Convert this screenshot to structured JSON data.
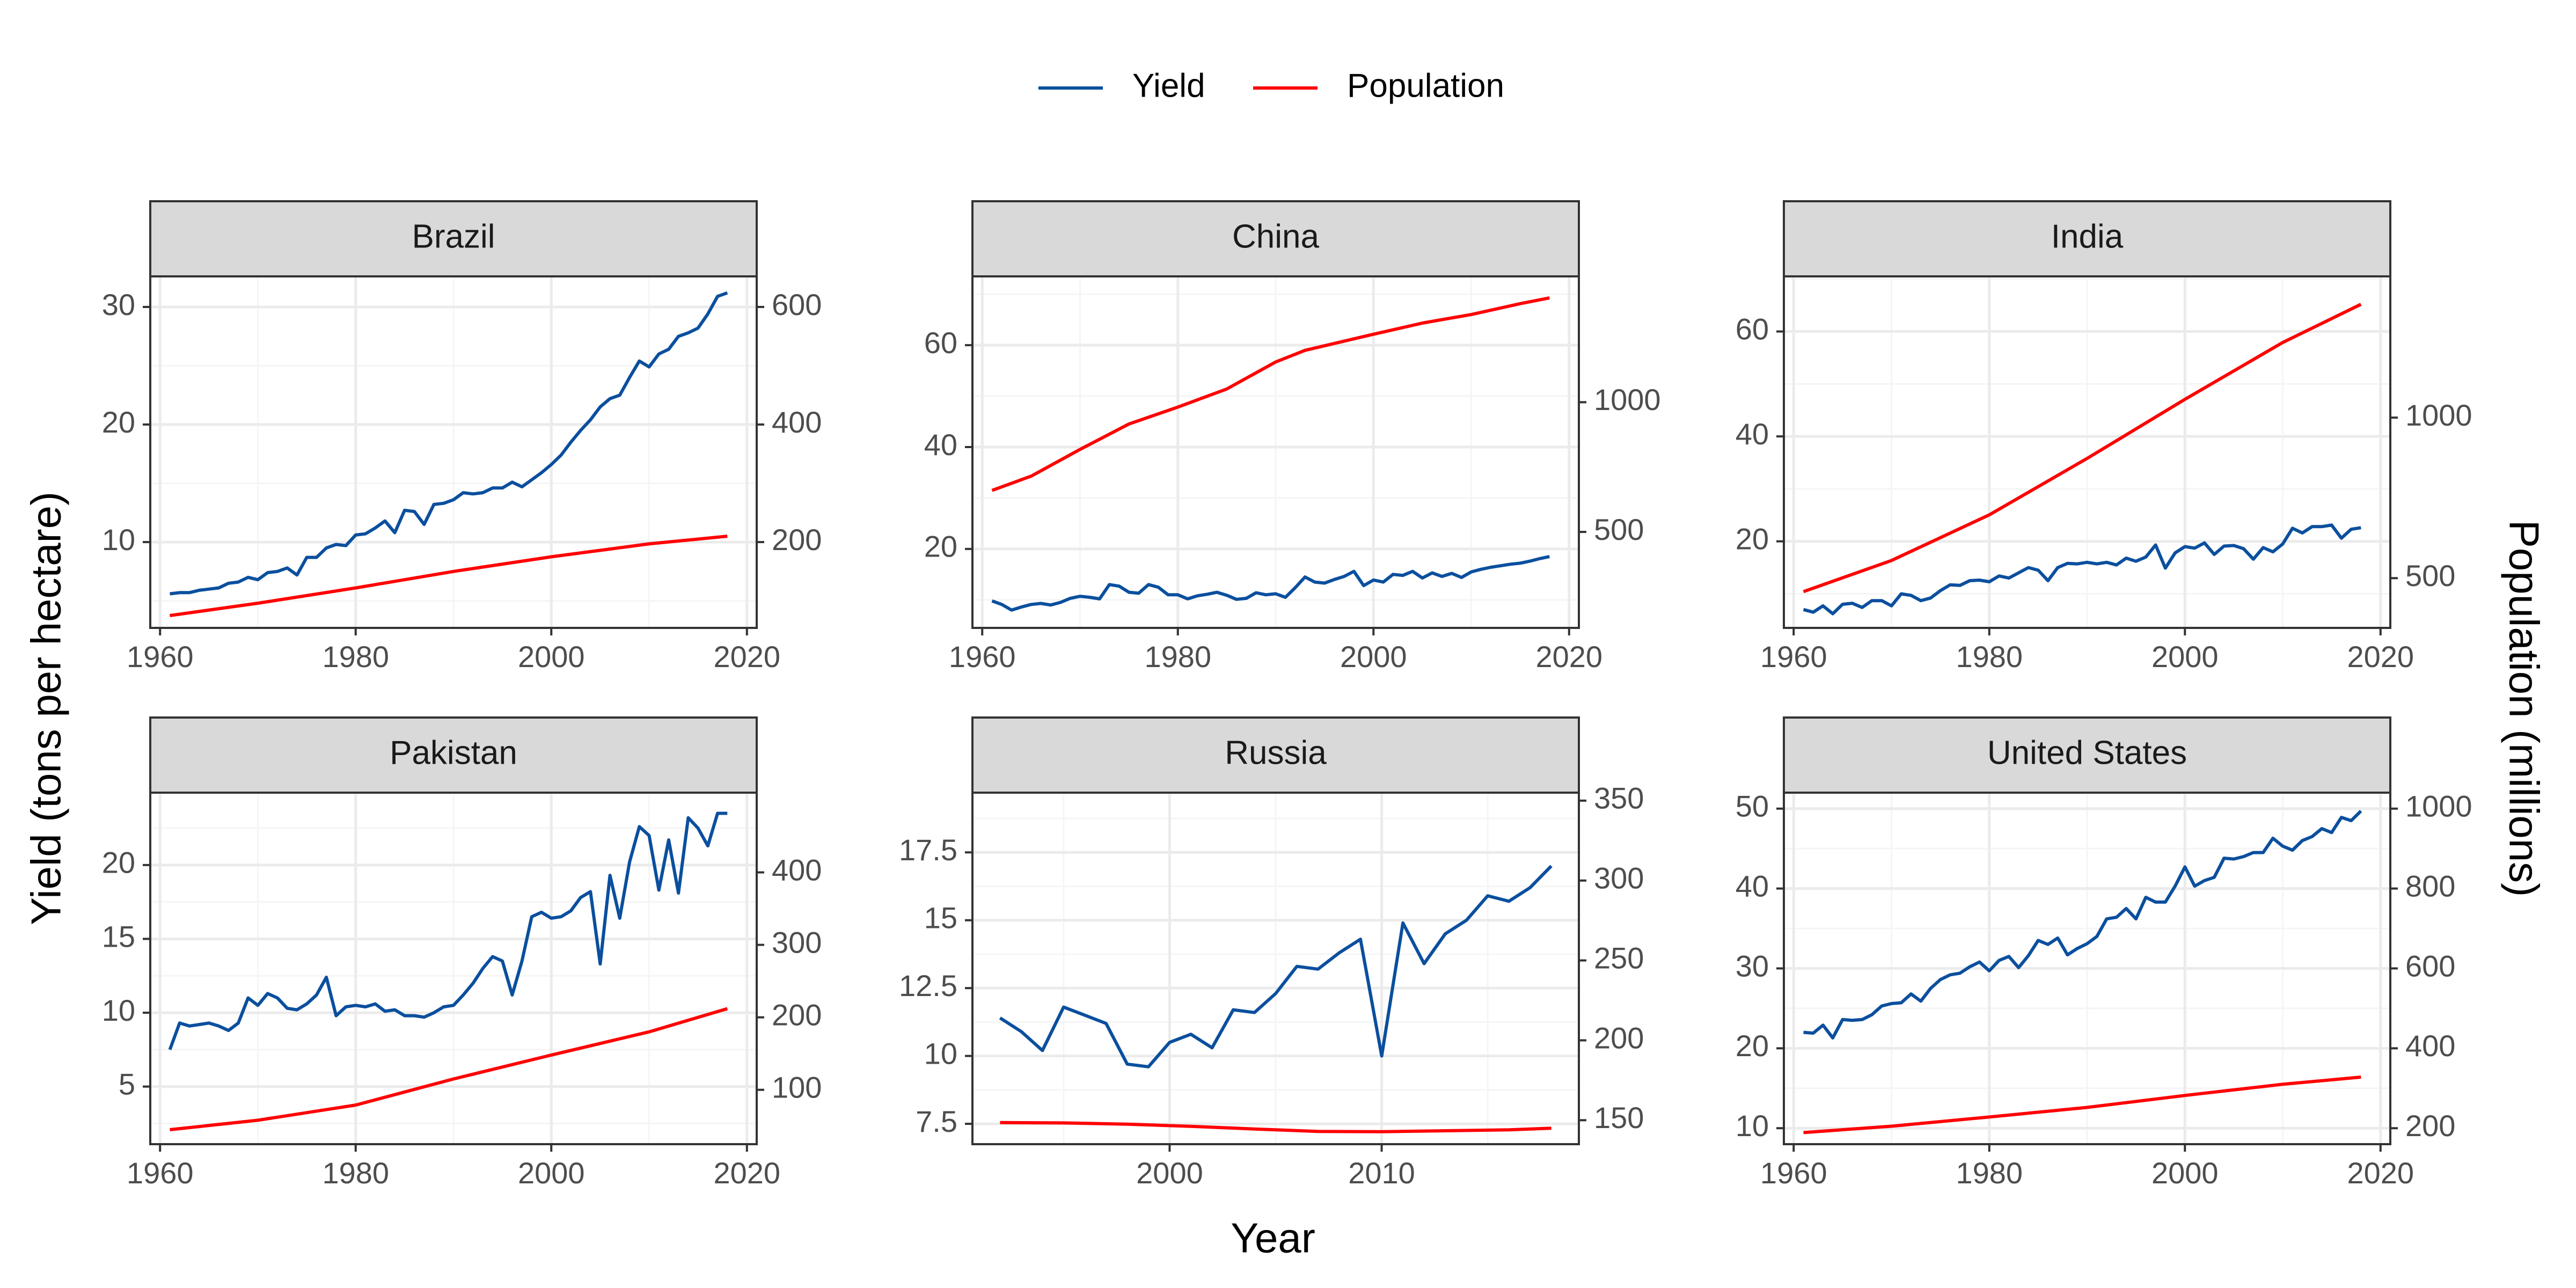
{
  "figure": {
    "x_axis_title": "Year",
    "y_left_title": "Yield (tons per hectare)",
    "y_right_title": "Population (millions)",
    "legend": [
      {
        "label": "Yield",
        "color": "#0b4f9e"
      },
      {
        "label": "Population",
        "color": "#ff0000"
      }
    ]
  },
  "colors": {
    "yield": "#0b4f9e",
    "population": "#ff0000",
    "strip": "#d9d9d9",
    "grid_major": "#ebebeb",
    "grid_minor": "#f5f5f5"
  },
  "chart_data": [
    {
      "type": "line",
      "title": "Brazil",
      "legend_position": "top",
      "grid": true,
      "xlim": [
        1959,
        2021
      ],
      "x_ticks": [
        1960,
        1980,
        2000,
        2020
      ],
      "ylim_left": [
        2.7,
        32.6
      ],
      "y_ticks_left": [
        10,
        20,
        30
      ],
      "ylim_right": [
        54,
        652
      ],
      "y_ticks_right": [
        200,
        400,
        600
      ],
      "series": [
        {
          "name": "Yield",
          "axis": "left",
          "x": [
            1961,
            1962,
            1963,
            1964,
            1965,
            1966,
            1967,
            1968,
            1969,
            1970,
            1971,
            1972,
            1973,
            1974,
            1975,
            1976,
            1977,
            1978,
            1979,
            1980,
            1981,
            1982,
            1983,
            1984,
            1985,
            1986,
            1987,
            1988,
            1989,
            1990,
            1991,
            1992,
            1993,
            1994,
            1995,
            1996,
            1997,
            1998,
            1999,
            2000,
            2001,
            2002,
            2003,
            2004,
            2005,
            2006,
            2007,
            2008,
            2009,
            2010,
            2011,
            2012,
            2013,
            2014,
            2015,
            2016,
            2017,
            2018
          ],
          "y": [
            5.6,
            5.7,
            5.7,
            5.9,
            6.0,
            6.1,
            6.5,
            6.6,
            7.0,
            6.8,
            7.4,
            7.5,
            7.8,
            7.2,
            8.7,
            8.7,
            9.5,
            9.8,
            9.7,
            10.6,
            10.7,
            11.2,
            11.8,
            10.8,
            12.7,
            12.6,
            11.5,
            13.2,
            13.3,
            13.6,
            14.2,
            14.1,
            14.2,
            14.6,
            14.6,
            15.1,
            14.7,
            15.3,
            15.9,
            16.6,
            17.4,
            18.5,
            19.5,
            20.4,
            21.5,
            22.2,
            22.5,
            24.0,
            25.4,
            24.9,
            26.0,
            26.4,
            27.5,
            27.8,
            28.2,
            29.4,
            30.9,
            31.2
          ]
        },
        {
          "name": "Population",
          "axis": "right",
          "x": [
            1961,
            1970,
            1980,
            1990,
            2000,
            2010,
            2018
          ],
          "y": [
            75,
            96,
            122,
            150,
            175,
            197,
            210
          ]
        }
      ]
    },
    {
      "type": "line",
      "title": "China",
      "legend_position": "top",
      "grid": true,
      "xlim": [
        1959,
        2021
      ],
      "x_ticks": [
        1960,
        1980,
        2000,
        2020
      ],
      "ylim_left": [
        4.5,
        73.5
      ],
      "y_ticks_left": [
        20,
        40,
        60
      ],
      "ylim_right": [
        130,
        1485
      ],
      "y_ticks_right": [
        500,
        1000
      ],
      "series": [
        {
          "name": "Yield",
          "axis": "left",
          "x": [
            1961,
            1962,
            1963,
            1964,
            1965,
            1966,
            1967,
            1968,
            1969,
            1970,
            1971,
            1972,
            1973,
            1974,
            1975,
            1976,
            1977,
            1978,
            1979,
            1980,
            1981,
            1982,
            1983,
            1984,
            1985,
            1986,
            1987,
            1988,
            1989,
            1990,
            1991,
            1992,
            1993,
            1994,
            1995,
            1996,
            1997,
            1998,
            1999,
            2000,
            2001,
            2002,
            2003,
            2004,
            2005,
            2006,
            2007,
            2008,
            2009,
            2010,
            2011,
            2012,
            2013,
            2014,
            2015,
            2016,
            2017,
            2018
          ],
          "y": [
            9.8,
            9.1,
            8.0,
            8.6,
            9.1,
            9.3,
            9.0,
            9.5,
            10.3,
            10.7,
            10.5,
            10.2,
            13.0,
            12.7,
            11.5,
            11.3,
            13.0,
            12.5,
            11.0,
            11.0,
            10.2,
            10.8,
            11.1,
            11.5,
            10.9,
            10.1,
            10.3,
            11.4,
            11.0,
            11.2,
            10.5,
            12.4,
            14.5,
            13.5,
            13.3,
            14.0,
            14.6,
            15.6,
            12.8,
            13.9,
            13.5,
            15.0,
            14.8,
            15.6,
            14.3,
            15.3,
            14.6,
            15.2,
            14.4,
            15.5,
            16.0,
            16.4,
            16.7,
            17.0,
            17.2,
            17.6,
            18.1,
            18.5
          ]
        },
        {
          "name": "Population",
          "axis": "right",
          "x": [
            1961,
            1965,
            1970,
            1975,
            1980,
            1985,
            1990,
            1993,
            2000,
            2005,
            2010,
            2015,
            2018
          ],
          "y": [
            660,
            715,
            818,
            916,
            981,
            1051,
            1155,
            1200,
            1262,
            1305,
            1338,
            1380,
            1402
          ]
        }
      ]
    },
    {
      "type": "line",
      "title": "India",
      "legend_position": "top",
      "grid": true,
      "xlim": [
        1959,
        2021
      ],
      "x_ticks": [
        1960,
        1980,
        2000,
        2020
      ],
      "ylim_left": [
        3.5,
        70.5
      ],
      "y_ticks_left": [
        20,
        40,
        60
      ],
      "ylim_right": [
        345,
        1440
      ],
      "y_ticks_right": [
        500,
        1000
      ],
      "series": [
        {
          "name": "Yield",
          "axis": "left",
          "x": [
            1961,
            1962,
            1963,
            1964,
            1965,
            1966,
            1967,
            1968,
            1969,
            1970,
            1971,
            1972,
            1973,
            1974,
            1975,
            1976,
            1977,
            1978,
            1979,
            1980,
            1981,
            1982,
            1983,
            1984,
            1985,
            1986,
            1987,
            1988,
            1989,
            1990,
            1991,
            1992,
            1993,
            1994,
            1995,
            1996,
            1997,
            1998,
            1999,
            2000,
            2001,
            2002,
            2003,
            2004,
            2005,
            2006,
            2007,
            2008,
            2009,
            2010,
            2011,
            2012,
            2013,
            2014,
            2015,
            2016,
            2017,
            2018
          ],
          "y": [
            7.0,
            6.5,
            7.7,
            6.2,
            8.0,
            8.2,
            7.4,
            8.7,
            8.7,
            7.7,
            10.0,
            9.7,
            8.7,
            9.2,
            10.6,
            11.7,
            11.6,
            12.5,
            12.6,
            12.3,
            13.4,
            13.0,
            14.0,
            15.0,
            14.5,
            12.5,
            15.0,
            15.8,
            15.7,
            16.0,
            15.7,
            16.0,
            15.5,
            16.8,
            16.2,
            17.0,
            19.3,
            14.9,
            17.8,
            19.0,
            18.7,
            19.7,
            17.5,
            19.1,
            19.2,
            18.6,
            16.6,
            18.8,
            18.0,
            19.5,
            22.5,
            21.6,
            22.8,
            22.8,
            23.1,
            20.6,
            22.3,
            22.6
          ]
        },
        {
          "name": "Population",
          "axis": "right",
          "x": [
            1961,
            1970,
            1980,
            1990,
            2000,
            2010,
            2018
          ],
          "y": [
            458,
            555,
            697,
            873,
            1057,
            1234,
            1353
          ]
        }
      ]
    },
    {
      "type": "line",
      "title": "Pakistan",
      "legend_position": "top",
      "grid": true,
      "xlim": [
        1959,
        2021
      ],
      "x_ticks": [
        1960,
        1980,
        2000,
        2020
      ],
      "ylim_left": [
        1.1,
        24.9
      ],
      "y_ticks_left": [
        5,
        10,
        15,
        20
      ],
      "ylim_right": [
        25,
        510
      ],
      "y_ticks_right": [
        100,
        200,
        300,
        400
      ],
      "series": [
        {
          "name": "Yield",
          "axis": "left",
          "x": [
            1961,
            1962,
            1963,
            1964,
            1965,
            1966,
            1967,
            1968,
            1969,
            1970,
            1971,
            1972,
            1973,
            1974,
            1975,
            1976,
            1977,
            1978,
            1979,
            1980,
            1981,
            1982,
            1983,
            1984,
            1985,
            1986,
            1987,
            1988,
            1989,
            1990,
            1991,
            1992,
            1993,
            1994,
            1995,
            1996,
            1997,
            1998,
            1999,
            2000,
            2001,
            2002,
            2003,
            2004,
            2005,
            2006,
            2007,
            2008,
            2009,
            2010,
            2011,
            2012,
            2013,
            2014,
            2015,
            2016,
            2017,
            2018
          ],
          "y": [
            7.5,
            9.3,
            9.1,
            9.2,
            9.3,
            9.1,
            8.8,
            9.3,
            11.0,
            10.5,
            11.3,
            11.0,
            10.3,
            10.2,
            10.6,
            11.2,
            12.4,
            9.8,
            10.4,
            10.5,
            10.4,
            10.6,
            10.1,
            10.2,
            9.8,
            9.8,
            9.7,
            10.0,
            10.4,
            10.5,
            11.2,
            12.0,
            13.0,
            13.8,
            13.5,
            11.2,
            13.5,
            16.5,
            16.8,
            16.4,
            16.5,
            16.9,
            17.8,
            18.2,
            13.3,
            19.3,
            16.4,
            20.2,
            22.6,
            22.0,
            18.3,
            21.7,
            18.1,
            23.2,
            22.5,
            21.3,
            23.5,
            23.5
          ]
        },
        {
          "name": "Population",
          "axis": "right",
          "x": [
            1961,
            1970,
            1980,
            1990,
            2000,
            2010,
            2018
          ],
          "y": [
            45,
            58,
            79,
            115,
            148,
            180,
            212
          ]
        }
      ]
    },
    {
      "type": "line",
      "title": "Russia",
      "legend_position": "top",
      "grid": true,
      "xlim": [
        1990.7,
        2019.3
      ],
      "x_ticks": [
        2000,
        2010
      ],
      "ylim_left": [
        6.75,
        19.7
      ],
      "y_ticks_left": [
        7.5,
        10.0,
        12.5,
        15.0,
        17.5
      ],
      "ylim_right": [
        135,
        355
      ],
      "y_ticks_right": [
        150,
        200,
        250,
        300,
        350
      ],
      "series": [
        {
          "name": "Yield",
          "axis": "left",
          "x": [
            1992,
            1993,
            1994,
            1995,
            1996,
            1997,
            1998,
            1999,
            2000,
            2001,
            2002,
            2003,
            2004,
            2005,
            2006,
            2007,
            2008,
            2009,
            2010,
            2011,
            2012,
            2013,
            2014,
            2015,
            2016,
            2017,
            2018
          ],
          "y": [
            11.4,
            10.9,
            10.2,
            11.8,
            11.5,
            11.2,
            9.7,
            9.6,
            10.5,
            10.8,
            10.3,
            11.7,
            11.6,
            12.3,
            13.3,
            13.2,
            13.8,
            14.3,
            10.0,
            14.9,
            13.4,
            14.5,
            15.0,
            15.9,
            15.7,
            16.2,
            17.0
          ]
        },
        {
          "name": "Population",
          "axis": "right",
          "x": [
            1992,
            1995,
            1998,
            2001,
            2004,
            2007,
            2010,
            2013,
            2016,
            2018
          ],
          "y": [
            148.5,
            148.3,
            147.5,
            146.2,
            144.5,
            143.0,
            142.8,
            143.4,
            144.0,
            145.0
          ]
        }
      ]
    },
    {
      "type": "line",
      "title": "United States",
      "legend_position": "top",
      "grid": true,
      "xlim": [
        1959,
        2021
      ],
      "x_ticks": [
        1960,
        1980,
        2000,
        2020
      ],
      "ylim_left": [
        8.0,
        52.0
      ],
      "y_ticks_left": [
        10,
        20,
        30,
        40,
        50
      ],
      "ylim_right": [
        160,
        1040
      ],
      "y_ticks_right": [
        200,
        400,
        600,
        800,
        1000
      ],
      "series": [
        {
          "name": "Yield",
          "axis": "left",
          "x": [
            1961,
            1962,
            1963,
            1964,
            1965,
            1966,
            1967,
            1968,
            1969,
            1970,
            1971,
            1972,
            1973,
            1974,
            1975,
            1976,
            1977,
            1978,
            1979,
            1980,
            1981,
            1982,
            1983,
            1984,
            1985,
            1986,
            1987,
            1988,
            1989,
            1990,
            1991,
            1992,
            1993,
            1994,
            1995,
            1996,
            1997,
            1998,
            1999,
            2000,
            2001,
            2002,
            2003,
            2004,
            2005,
            2006,
            2007,
            2008,
            2009,
            2010,
            2011,
            2012,
            2013,
            2014,
            2015,
            2016,
            2017,
            2018
          ],
          "y": [
            22.0,
            21.9,
            22.9,
            21.3,
            23.6,
            23.5,
            23.6,
            24.2,
            25.3,
            25.6,
            25.7,
            26.8,
            25.9,
            27.5,
            28.6,
            29.2,
            29.4,
            30.2,
            30.8,
            29.7,
            31.0,
            31.5,
            30.1,
            31.6,
            33.5,
            33.0,
            33.8,
            31.7,
            32.5,
            33.1,
            34.0,
            36.2,
            36.4,
            37.5,
            36.2,
            38.9,
            38.3,
            38.3,
            40.3,
            42.7,
            40.3,
            41.0,
            41.4,
            43.8,
            43.7,
            44.0,
            44.5,
            44.5,
            46.3,
            45.3,
            44.8,
            46.0,
            46.5,
            47.5,
            47.0,
            48.9,
            48.5,
            49.7
          ]
        },
        {
          "name": "Population",
          "axis": "right",
          "x": [
            1961,
            1970,
            1980,
            1990,
            2000,
            2010,
            2018
          ],
          "y": [
            189,
            205,
            228,
            252,
            282,
            310,
            328
          ]
        }
      ]
    }
  ]
}
